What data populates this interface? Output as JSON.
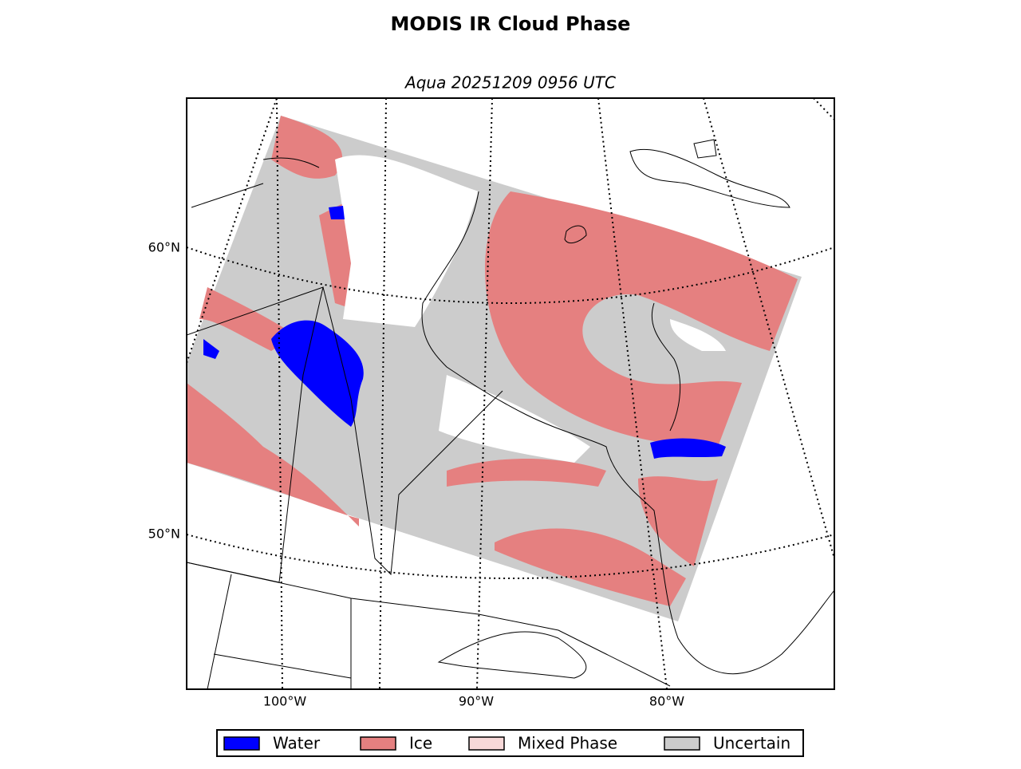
{
  "title": "MODIS IR Cloud Phase",
  "subtitle": "Aqua 20251209 0956 UTC",
  "lat_labels": [
    "60°N",
    "50°N"
  ],
  "lon_labels": [
    "100°W",
    "90°W",
    "80°W"
  ],
  "legend": [
    {
      "label": "Water",
      "color": "#0000ff"
    },
    {
      "label": "Ice",
      "color": "#e58080"
    },
    {
      "label": "Mixed Phase",
      "color": "#f7d8d8"
    },
    {
      "label": "Uncertain",
      "color": "#cccccc"
    }
  ]
}
